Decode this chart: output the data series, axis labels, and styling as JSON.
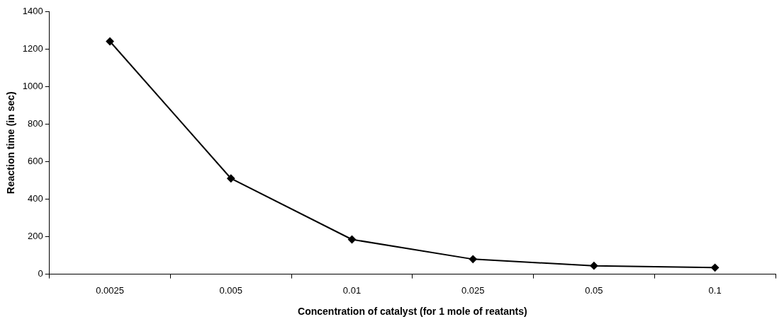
{
  "chart_data": {
    "type": "line",
    "xlabel": "Concentration of catalyst (for 1 mole of reatants)",
    "ylabel": "Reaction time (in sec)",
    "categories": [
      "0.0025",
      "0.005",
      "0.01",
      "0.025",
      "0.05",
      "0.1"
    ],
    "series": [
      {
        "color": "#000000",
        "values": [
          1240,
          510,
          185,
          80,
          45,
          35
        ]
      }
    ],
    "ylim": [
      0,
      1400
    ],
    "yticks": [
      0,
      200,
      400,
      600,
      800,
      1000,
      1200,
      1400
    ],
    "grid": false,
    "legend": false,
    "marker": "diamond",
    "line_style": "solid"
  }
}
